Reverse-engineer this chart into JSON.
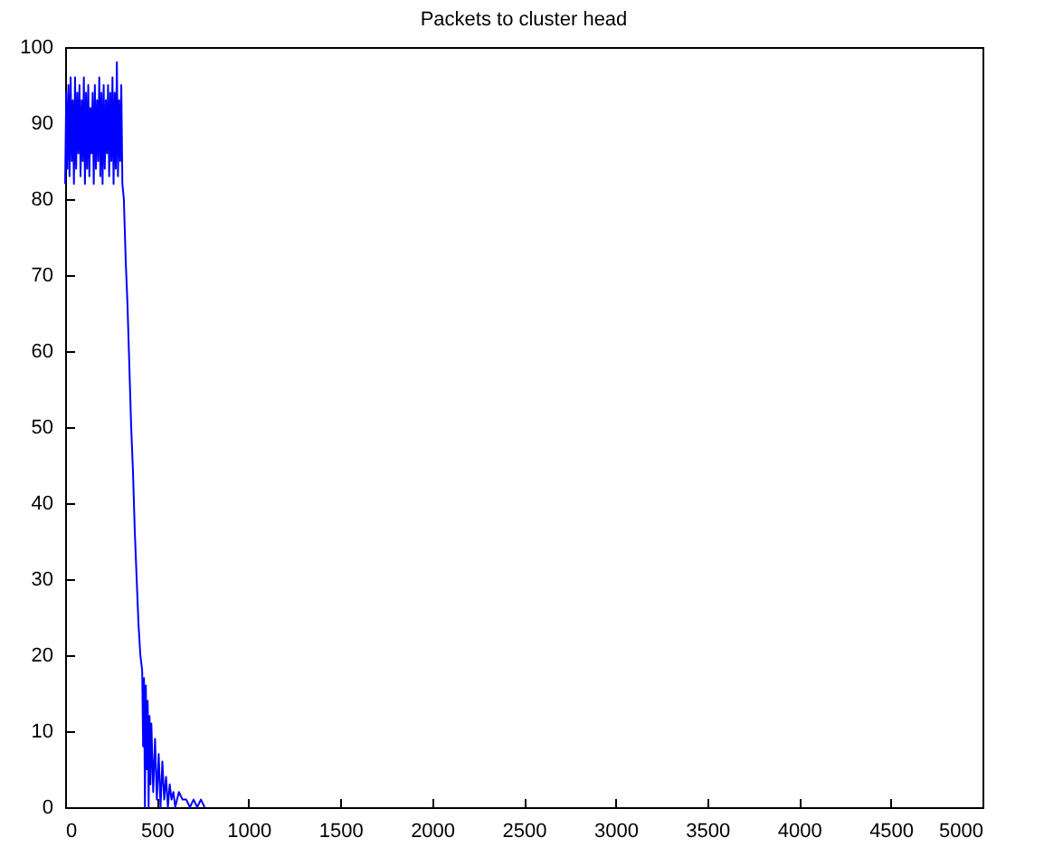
{
  "chart_data": {
    "type": "line",
    "title": "Packets to cluster head",
    "x": [
      0,
      6,
      12,
      18,
      24,
      30,
      36,
      42,
      48,
      54,
      60,
      66,
      72,
      78,
      84,
      90,
      96,
      102,
      108,
      114,
      120,
      126,
      132,
      138,
      144,
      150,
      156,
      162,
      168,
      174,
      180,
      186,
      192,
      198,
      204,
      210,
      216,
      222,
      228,
      234,
      240,
      246,
      252,
      258,
      264,
      270,
      276,
      282,
      288,
      294,
      300,
      306,
      312,
      320,
      330,
      340,
      350,
      360,
      370,
      380,
      390,
      400,
      410,
      420,
      425,
      430,
      435,
      440,
      445,
      450,
      455,
      460,
      465,
      470,
      480,
      490,
      500,
      510,
      520,
      530,
      540,
      550,
      560,
      570,
      580,
      590,
      600,
      620,
      640,
      660,
      680,
      700,
      720,
      740,
      760
    ],
    "series": [
      {
        "color": "#0000ff",
        "values": [
          82,
          94,
          84,
          95,
          83,
          96,
          85,
          93,
          82,
          96,
          84,
          94,
          86,
          95,
          83,
          93,
          85,
          96,
          82,
          94,
          84,
          95,
          83,
          92,
          86,
          94,
          82,
          95,
          84,
          93,
          85,
          96,
          83,
          94,
          82,
          95,
          84,
          93,
          86,
          95,
          83,
          94,
          85,
          96,
          82,
          94,
          84,
          98,
          83,
          93,
          85,
          95,
          82,
          80,
          72,
          66,
          58,
          50,
          44,
          36,
          30,
          24,
          20,
          18,
          8,
          17,
          0,
          16,
          5,
          14,
          0,
          12,
          3,
          11,
          2,
          9,
          1,
          7,
          0,
          6,
          1,
          4,
          0,
          3,
          1,
          2,
          0,
          2,
          1,
          1,
          0,
          1,
          0,
          1,
          0
        ]
      }
    ],
    "xlim": [
      0,
      5000
    ],
    "ylim": [
      0,
      100
    ],
    "xticks": [
      0,
      500,
      1000,
      1500,
      2000,
      2500,
      3000,
      3500,
      4000,
      4500,
      5000
    ],
    "yticks": [
      0,
      10,
      20,
      30,
      40,
      50,
      60,
      70,
      80,
      90,
      100
    ],
    "grid": false
  }
}
